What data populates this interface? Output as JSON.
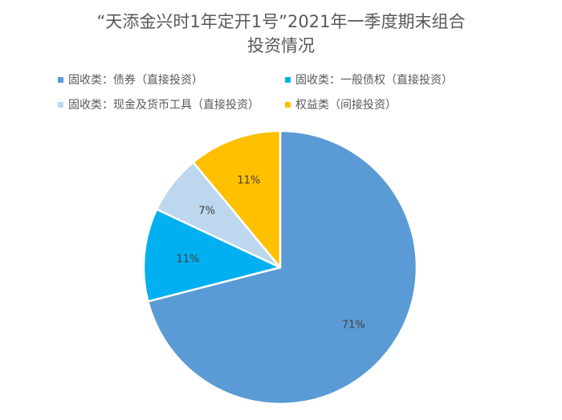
{
  "chart_data": {
    "type": "pie",
    "title_lines": [
      "“天添金兴时1年定开1号”2021年一季度期末组合",
      "投资情况"
    ],
    "legend": {
      "position": "top",
      "entries": [
        {
          "label": "固收类：债券（直接投资）",
          "color": "#5b9bd5"
        },
        {
          "label": "固收类：一般债权（直接投资）",
          "color": "#00b0f0"
        },
        {
          "label": "固收类：现金及货币工具（直接投资）",
          "color": "#bdd7ee"
        },
        {
          "label": "权益类（间接投资）",
          "color": "#ffc000"
        }
      ]
    },
    "slices": [
      {
        "label": "固收类：债券（直接投资）",
        "value": 71,
        "display": "71%",
        "color": "#5b9bd5"
      },
      {
        "label": "固收类：一般债权（直接投资）",
        "value": 11,
        "display": "11%",
        "color": "#00b0f0"
      },
      {
        "label": "固收类：现金及货币工具（直接投资）",
        "value": 7,
        "display": "7%",
        "color": "#bdd7ee"
      },
      {
        "label": "权益类（间接投资）",
        "value": 11,
        "display": "11%",
        "color": "#ffc000"
      }
    ]
  }
}
